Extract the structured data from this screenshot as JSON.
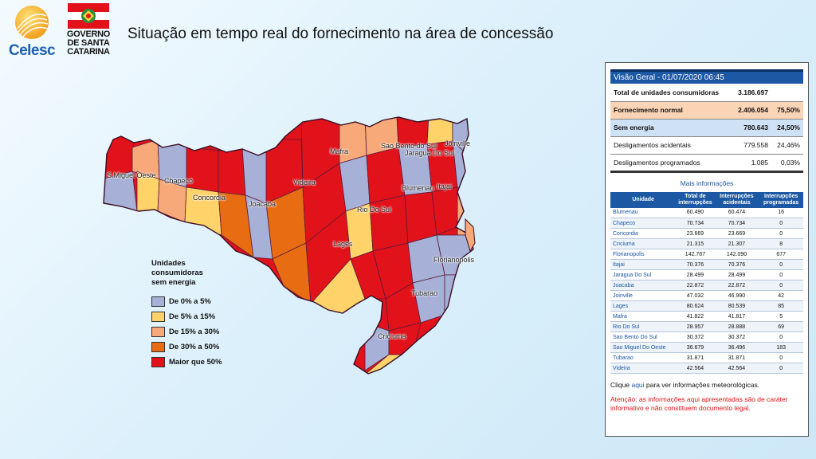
{
  "header": {
    "celesc_text": "Celesc",
    "gov_line1": "GOVERNO",
    "gov_line2": "DE SANTA",
    "gov_line3": "CATARINA",
    "title": "Situação em tempo real do fornecimento na área de concessão"
  },
  "map": {
    "cities": [
      "S.Miguel Oeste",
      "Chapecó",
      "Concordia",
      "Joacaba",
      "Videira",
      "Mafra",
      "Sao Bento do Sul",
      "Jaragua Do Sul",
      "Joinville",
      "Blumenau",
      "Itajai",
      "Rio Do Sul",
      "Florianopolis",
      "Lages",
      "Tubarao",
      "Criciuma"
    ]
  },
  "legend": {
    "title_line1": "Unidades",
    "title_line2": "consumidoras",
    "title_line3": "sem energia",
    "items": [
      {
        "label": "De 0% a 5%",
        "color": "#a7b0d6"
      },
      {
        "label": "De 5% a 15%",
        "color": "#ffd36a"
      },
      {
        "label": "De 15% a 30%",
        "color": "#f7a979"
      },
      {
        "label": "De 30% a 50%",
        "color": "#e86d12"
      },
      {
        "label": "Maior que 50%",
        "color": "#e2121b"
      }
    ]
  },
  "overview": {
    "header": "Visão Geral - 01/07/2020 06:45",
    "rows": [
      {
        "label": "Total de unidades consumidoras",
        "value": "3.186.697",
        "pct": ""
      },
      {
        "label": "Fornecimento normal",
        "value": "2.406.054",
        "pct": "75,50%"
      },
      {
        "label": "Sem energia",
        "value": "780.643",
        "pct": "24,50%"
      },
      {
        "label": "Desligamentos acidentais",
        "value": "779.558",
        "pct": "24,46%"
      },
      {
        "label": "Desligamentos programados",
        "value": "1.085",
        "pct": "0,03%"
      }
    ],
    "more_info": "Mais informações"
  },
  "units_table": {
    "headers": [
      "Unidade",
      "Total de interrupções",
      "Interrupções acidentais",
      "Interrupções programadas"
    ],
    "rows": [
      [
        "Blumenau",
        "60.490",
        "60.474",
        "16"
      ],
      [
        "Chapeco",
        "70.734",
        "70.734",
        "0"
      ],
      [
        "Concordia",
        "23.669",
        "23.669",
        "0"
      ],
      [
        "Criciuma",
        "21.315",
        "21.307",
        "8"
      ],
      [
        "Florianopolis",
        "142.767",
        "142.090",
        "677"
      ],
      [
        "Itajai",
        "70.376",
        "70.376",
        "0"
      ],
      [
        "Jaragua Do Sul",
        "28.499",
        "28.499",
        "0"
      ],
      [
        "Joacaba",
        "22.872",
        "22.872",
        "0"
      ],
      [
        "Joinville",
        "47.032",
        "46.990",
        "42"
      ],
      [
        "Lages",
        "80.624",
        "80.539",
        "85"
      ],
      [
        "Mafra",
        "41.822",
        "41.817",
        "5"
      ],
      [
        "Rio Do Sul",
        "28.957",
        "28.888",
        "69"
      ],
      [
        "Sao Bento Do Sul",
        "30.372",
        "30.372",
        "0"
      ],
      [
        "Sao Miguel Do Oeste",
        "36.679",
        "36.496",
        "183"
      ],
      [
        "Tubarao",
        "31.871",
        "31.871",
        "0"
      ],
      [
        "Videira",
        "42.564",
        "42.564",
        "0"
      ]
    ]
  },
  "footer": {
    "meteo_prefix": "Clique ",
    "meteo_link": "aqui",
    "meteo_suffix": " para ver informações meteorológicas.",
    "warning": "Atenção: as informações aqui apresentadas são de caráter informativo e não constituem documento legal."
  }
}
